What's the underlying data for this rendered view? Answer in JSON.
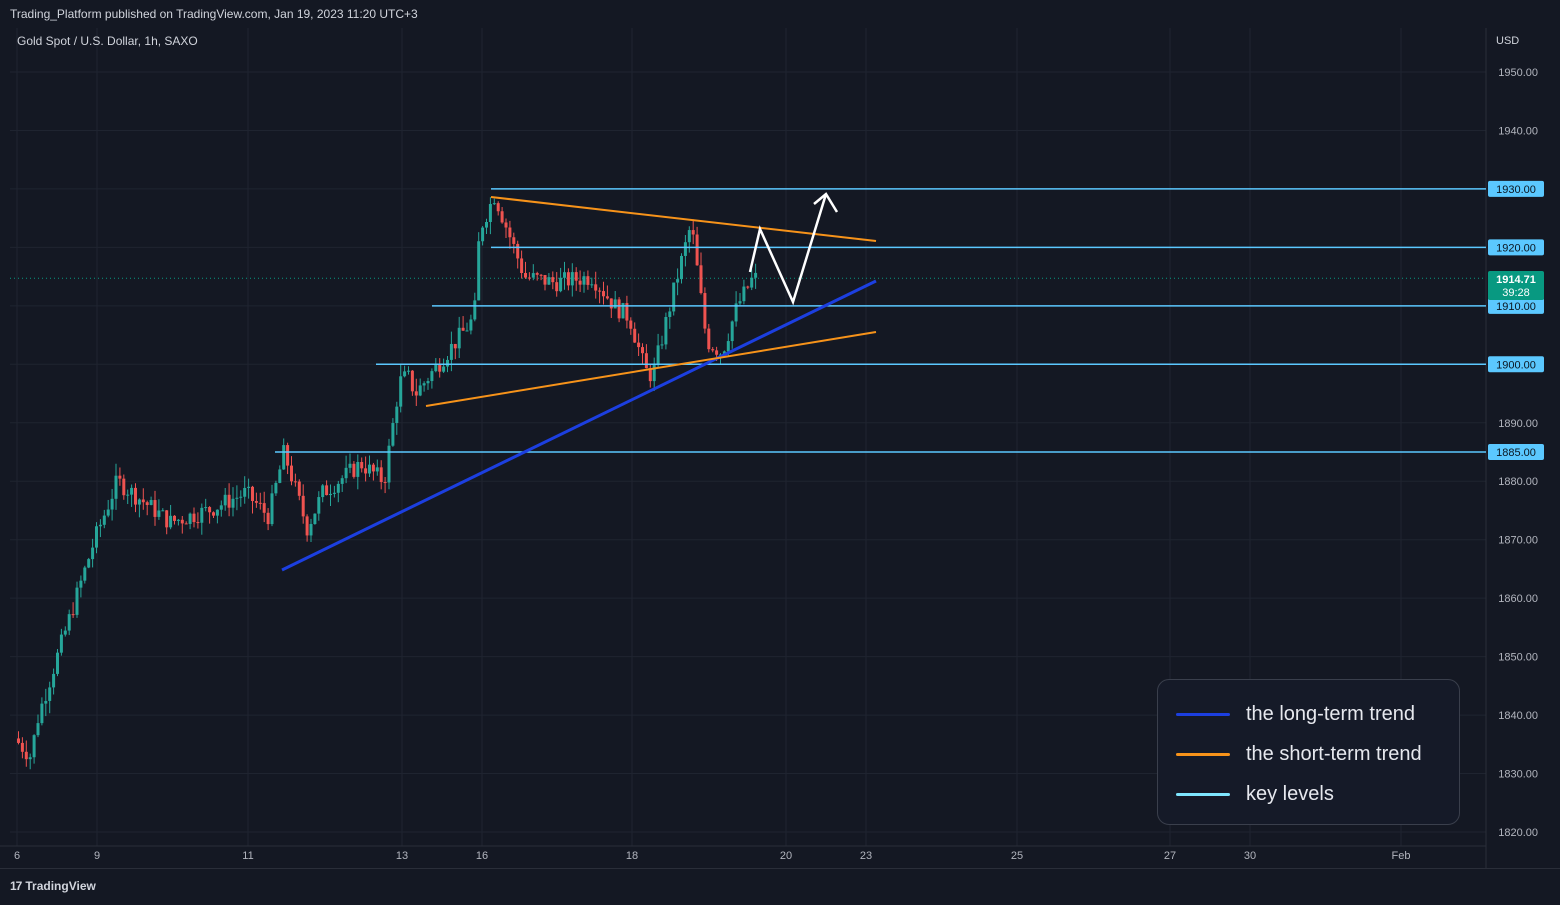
{
  "header": {
    "published": "Trading_Platform published on TradingView.com, Jan 19, 2023 11:20 UTC+3",
    "symbol": "Gold Spot / U.S. Dollar, 1h, SAXO",
    "currency": "USD"
  },
  "footer": {
    "brand": "TradingView",
    "brand_mark": "17"
  },
  "price_label": {
    "value": "1914.71",
    "countdown": "39:28",
    "color": "#089981"
  },
  "legend": [
    {
      "label": "the long-term trend",
      "color": "#1c3fe0"
    },
    {
      "label": "the short-term trend",
      "color": "#f7931a"
    },
    {
      "label": "key levels",
      "color": "#7ee6ff"
    }
  ],
  "colors": {
    "background": "#141823",
    "grid": "#1f2430",
    "up_candle": "#26a69a",
    "down_candle": "#ef5350",
    "key_level": "#5bc8ff",
    "key_level_badge": "#5bc8ff",
    "long_trend": "#1c3fe0",
    "short_trend": "#f7931a",
    "projection": "#ffffff"
  },
  "chart_data": {
    "type": "candlestick",
    "title": "Gold Spot / U.S. Dollar, 1h, SAXO",
    "ylabel": "USD",
    "ylim": [
      1817,
      1957
    ],
    "y_ticks": [
      "1950.00",
      "1940.00",
      "1930.00",
      "1920.00",
      "1910.00",
      "1900.00",
      "1890.00",
      "1880.00",
      "1870.00",
      "1860.00",
      "1850.00",
      "1840.00",
      "1830.00",
      "1820.00"
    ],
    "x_ticks": [
      "6",
      "9",
      "11",
      "13",
      "16",
      "18",
      "20",
      "23",
      "25",
      "27",
      "30",
      "Feb"
    ],
    "last_price": 1914.71,
    "key_levels": [
      {
        "value": 1930,
        "label": "1930.00"
      },
      {
        "value": 1920,
        "label": "1920.00"
      },
      {
        "value": 1910,
        "label": "1910.00"
      },
      {
        "value": 1900,
        "label": "1900.00"
      },
      {
        "value": 1885,
        "label": "1885.00"
      }
    ],
    "price_path": [
      [
        "6",
        1836
      ],
      [
        "6.6",
        1833
      ],
      [
        "6.9",
        1840
      ],
      [
        "9",
        1870
      ],
      [
        "9.3",
        1880
      ],
      [
        "10",
        1873
      ],
      [
        "10.5",
        1875
      ],
      [
        "11",
        1878
      ],
      [
        "11.3",
        1874
      ],
      [
        "11.5",
        1885
      ],
      [
        "11.8",
        1872
      ],
      [
        "12",
        1878
      ],
      [
        "12.5",
        1883
      ],
      [
        "12.8",
        1880
      ],
      [
        "13",
        1897
      ],
      [
        "13.3",
        1898
      ],
      [
        "13.6",
        1895
      ],
      [
        "15.8",
        1908
      ],
      [
        "16",
        1923
      ],
      [
        "16.2",
        1929
      ],
      [
        "16.6",
        1915
      ],
      [
        "17",
        1914
      ],
      [
        "17.5",
        1915
      ],
      [
        "17.8",
        1910
      ],
      [
        "18",
        1908
      ],
      [
        "18.2",
        1899
      ],
      [
        "18.3",
        1898
      ],
      [
        "18.6",
        1914
      ],
      [
        "18.8",
        1924
      ],
      [
        "19",
        1904
      ],
      [
        "19.2",
        1902
      ],
      [
        "19.4",
        1910
      ],
      [
        "19.6",
        1914.71
      ]
    ]
  }
}
